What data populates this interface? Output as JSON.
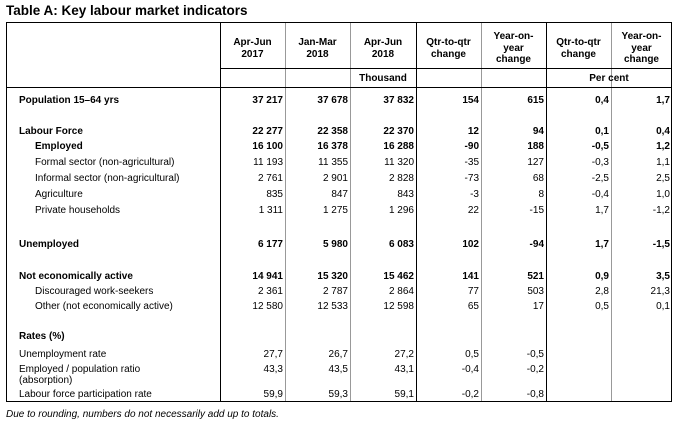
{
  "title": "Table A: Key labour market indicators",
  "footnote": "Due to rounding, numbers do not necessarily add up to totals.",
  "headers": {
    "c1": [
      "Apr-Jun",
      "2017"
    ],
    "c2": [
      "Jan-Mar",
      "2018"
    ],
    "c3": [
      "Apr-Jun",
      "2018"
    ],
    "c4": [
      "Qtr-to-qtr",
      "change"
    ],
    "c5": [
      "Year-on-",
      "year",
      "change"
    ],
    "c6": [
      "Qtr-to-qtr",
      "change"
    ],
    "c7": [
      "Year-on-",
      "year",
      "change"
    ],
    "unit_thousand": "Thousand",
    "unit_percent": "Per cent"
  },
  "rows": [
    {
      "label": "Population 15–64 yrs",
      "bold": true,
      "indent": false,
      "values": [
        "37 217",
        "37 678",
        "37 832",
        "154",
        "615",
        "0,4",
        "1,7"
      ],
      "bold_values": true
    },
    {
      "label": "Labour Force",
      "bold": true,
      "indent": false,
      "values": [
        "22 277",
        "22 358",
        "22 370",
        "12",
        "94",
        "0,1",
        "0,4"
      ],
      "bold_values": true
    },
    {
      "label": "Employed",
      "bold": true,
      "indent": true,
      "values": [
        "16 100",
        "16 378",
        "16 288",
        "-90",
        "188",
        "-0,5",
        "1,2"
      ],
      "bold_values": true
    },
    {
      "label": "Formal sector (non-agricultural)",
      "bold": false,
      "indent": true,
      "values": [
        "11 193",
        "11 355",
        "11 320",
        "-35",
        "127",
        "-0,3",
        "1,1"
      ],
      "bold_values": false
    },
    {
      "label": "Informal sector (non-agricultural)",
      "bold": false,
      "indent": true,
      "values": [
        "2 761",
        "2 901",
        "2 828",
        "-73",
        "68",
        "-2,5",
        "2,5"
      ],
      "bold_values": false
    },
    {
      "label": "Agriculture",
      "bold": false,
      "indent": true,
      "values": [
        "835",
        "847",
        "843",
        "-3",
        "8",
        "-0,4",
        "1,0"
      ],
      "bold_values": false
    },
    {
      "label": "Private households",
      "bold": false,
      "indent": true,
      "values": [
        "1 311",
        "1 275",
        "1 296",
        "22",
        "-15",
        "1,7",
        "-1,2"
      ],
      "bold_values": false
    },
    {
      "label": "Unemployed",
      "bold": true,
      "indent": false,
      "values": [
        "6 177",
        "5 980",
        "6 083",
        "102",
        "-94",
        "1,7",
        "-1,5"
      ],
      "bold_values": true
    },
    {
      "label": "Not economically active",
      "bold": true,
      "indent": false,
      "values": [
        "14 941",
        "15 320",
        "15 462",
        "141",
        "521",
        "0,9",
        "3,5"
      ],
      "bold_values": true
    },
    {
      "label": "Discouraged work-seekers",
      "bold": false,
      "indent": true,
      "values": [
        "2 361",
        "2 787",
        "2 864",
        "77",
        "503",
        "2,8",
        "21,3"
      ],
      "bold_values": false
    },
    {
      "label": "Other (not economically active)",
      "bold": false,
      "indent": true,
      "values": [
        "12 580",
        "12 533",
        "12 598",
        "65",
        "17",
        "0,5",
        "0,1"
      ],
      "bold_values": false
    },
    {
      "label": "Rates (%)",
      "bold": true,
      "indent": false,
      "values": [
        "",
        "",
        "",
        "",
        "",
        "",
        ""
      ],
      "bold_values": false
    },
    {
      "label": "Unemployment rate",
      "bold": false,
      "indent": false,
      "values": [
        "27,7",
        "26,7",
        "27,2",
        "0,5",
        "-0,5",
        "",
        ""
      ],
      "bold_values": false
    },
    {
      "label": "Employed / population ratio",
      "bold": false,
      "indent": false,
      "values": [
        "43,3",
        "43,5",
        "43,1",
        "-0,4",
        "-0,2",
        "",
        ""
      ],
      "bold_values": false
    },
    {
      "label": "(absorption)",
      "bold": false,
      "indent": false,
      "values": [
        "",
        "",
        "",
        "",
        "",
        "",
        ""
      ],
      "bold_values": false
    },
    {
      "label": "Labour force participation rate",
      "bold": false,
      "indent": false,
      "values": [
        "59,9",
        "59,3",
        "59,1",
        "-0,2",
        "-0,8",
        "",
        ""
      ],
      "bold_values": false
    }
  ]
}
